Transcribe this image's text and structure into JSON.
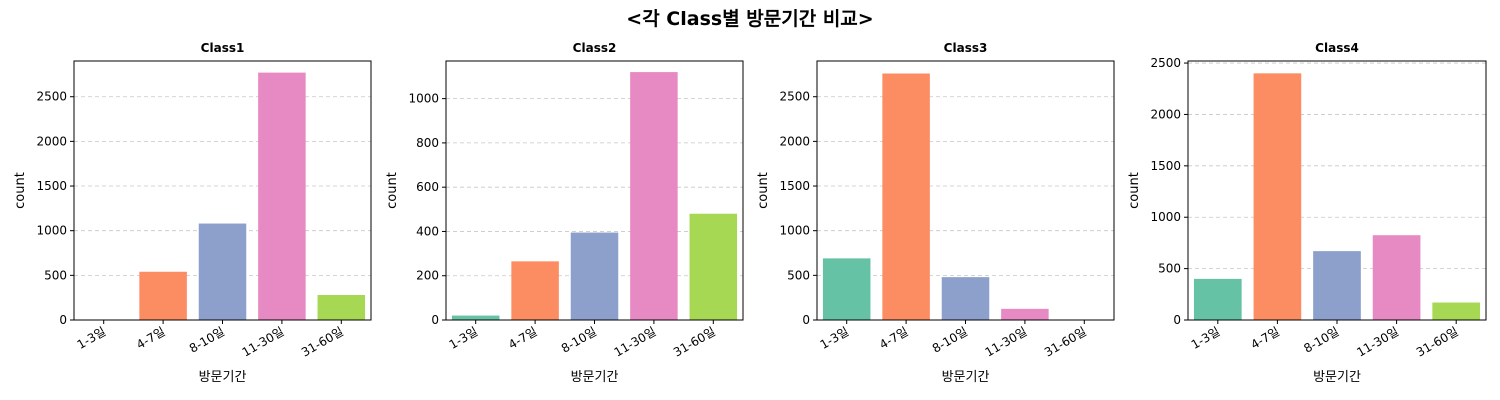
{
  "suptitle": "<각 Class별 방문기간 비교>",
  "colors": {
    "palette": [
      "#66c2a5",
      "#fc8d62",
      "#8da0cb",
      "#e78ac3",
      "#a6d854"
    ],
    "grid": "#b0b0b0",
    "axis": "#000000"
  },
  "chart_data": [
    {
      "type": "bar",
      "title": "Class1",
      "xlabel": "방문기간",
      "ylabel": "count",
      "categories": [
        "1-3일",
        "4-7일",
        "8-10일",
        "11-30일",
        "31-60일"
      ],
      "values": [
        0,
        540,
        1080,
        2770,
        280
      ],
      "ylim": [
        0,
        2900
      ],
      "yticks": [
        0,
        500,
        1000,
        1500,
        2000,
        2500
      ],
      "grid": "y-dashed"
    },
    {
      "type": "bar",
      "title": "Class2",
      "xlabel": "방문기간",
      "ylabel": "count",
      "categories": [
        "1-3일",
        "4-7일",
        "8-10일",
        "11-30일",
        "31-60일"
      ],
      "values": [
        20,
        265,
        395,
        1120,
        480
      ],
      "ylim": [
        0,
        1170
      ],
      "yticks": [
        0,
        200,
        400,
        600,
        800,
        1000
      ],
      "grid": "y-dashed"
    },
    {
      "type": "bar",
      "title": "Class3",
      "xlabel": "방문기간",
      "ylabel": "count",
      "categories": [
        "1-3일",
        "4-7일",
        "8-10일",
        "11-30일",
        "31-60일"
      ],
      "values": [
        690,
        2760,
        480,
        125,
        0
      ],
      "ylim": [
        0,
        2900
      ],
      "yticks": [
        0,
        500,
        1000,
        1500,
        2000,
        2500
      ],
      "grid": "y-dashed"
    },
    {
      "type": "bar",
      "title": "Class4",
      "xlabel": "방문기간",
      "ylabel": "count",
      "categories": [
        "1-3일",
        "4-7일",
        "8-10일",
        "11-30일",
        "31-60일"
      ],
      "values": [
        400,
        2400,
        670,
        825,
        170
      ],
      "ylim": [
        0,
        2520
      ],
      "yticks": [
        0,
        500,
        1000,
        1500,
        2000,
        2500
      ],
      "grid": "y-dashed"
    }
  ]
}
